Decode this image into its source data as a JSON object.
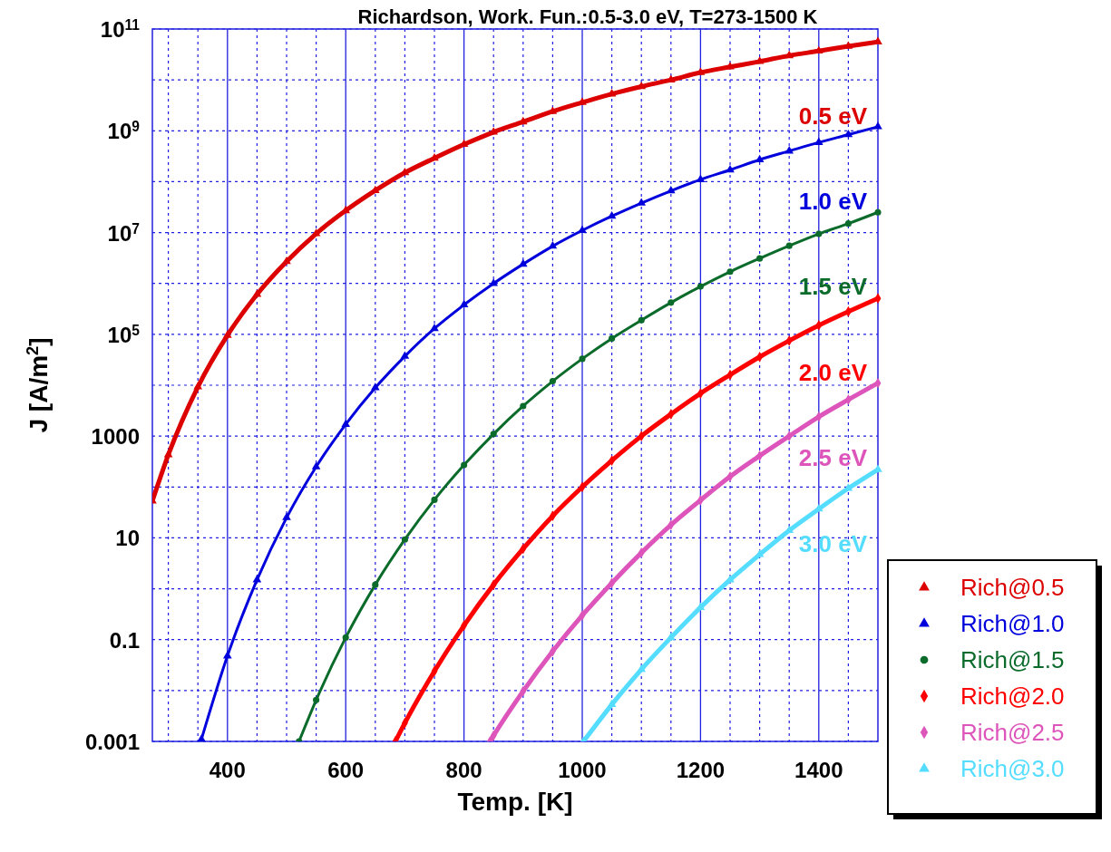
{
  "chart_data": {
    "type": "line",
    "title": "Richardson, Work. Fun.:0.5-3.0 eV, T=273-1500 K",
    "xlabel": "Temp. [K]",
    "ylabel": "J [A/m$^{2}$]",
    "log": "y",
    "grid": true,
    "legend": "bottom right",
    "xlim": [
      273,
      1500
    ],
    "xticks": [
      {
        "value": 300,
        "label": null
      },
      {
        "value": 350,
        "label": null
      },
      400,
      {
        "value": 450,
        "label": null
      },
      {
        "value": 500,
        "label": null
      },
      {
        "value": 550,
        "label": null
      },
      600,
      {
        "value": 650,
        "label": null
      },
      {
        "value": 700,
        "label": null
      },
      {
        "value": 750,
        "label": null
      },
      800,
      {
        "value": 850,
        "label": null
      },
      {
        "value": 900,
        "label": null
      },
      {
        "value": 950,
        "label": null
      },
      1000,
      {
        "value": 1050,
        "label": null
      },
      {
        "value": 1100,
        "label": null
      },
      {
        "value": 1150,
        "label": null
      },
      1200,
      {
        "value": 1250,
        "label": null
      },
      {
        "value": 1300,
        "label": null
      },
      {
        "value": 1350,
        "label": null
      },
      1400,
      {
        "value": 1450,
        "label": null
      }
    ],
    "ylim": [
      0.001,
      100000000000.0
    ],
    "yticks": [
      0.001,
      {
        "value": 0.01,
        "label": null
      },
      0.1,
      {
        "value": 1,
        "label": null
      },
      10,
      {
        "value": 100,
        "label": null
      },
      1000,
      {
        "value": 10000,
        "label": null
      },
      {
        "value": 100000,
        "label": "10$^{5}$"
      },
      {
        "value": 1000000,
        "label": null
      },
      {
        "value": 10000000,
        "label": "10$^{7}$"
      },
      {
        "value": 100000000,
        "label": null
      },
      {
        "value": 1000000000,
        "label": "10$^{9}$"
      },
      {
        "value": 10000000000,
        "label": null
      },
      {
        "value": 100000000000,
        "label": "10$^{11}$"
      }
    ],
    "series": [
      {
        "name": "Rich@0.5",
        "color": "#dd0000",
        "marker": "triangle",
        "x": [
          273,
          300,
          350,
          400,
          450,
          500,
          550,
          600,
          650,
          700,
          750,
          800,
          850,
          900,
          950,
          1000,
          1050,
          1100,
          1150,
          1200,
          1250,
          1300,
          1350,
          1400,
          1450,
          1500
        ],
        "values": [
          53,
          430,
          9300,
          96000,
          610000,
          2700000,
          9500000,
          27000000,
          67000000,
          150000000,
          290000000,
          540000000,
          940000000,
          1500000000,
          2400000000,
          3600000000,
          5300000000,
          7400000000,
          10000000000,
          14000000000,
          18000000000,
          23000000000,
          30000000000,
          37000000000,
          46000000000,
          56000000000
        ]
      },
      {
        "name": "Rich@1.0",
        "color": "#0000dd",
        "marker": "triangle",
        "x": [
          356,
          400,
          450,
          500,
          550,
          600,
          650,
          700,
          750,
          800,
          850,
          900,
          950,
          1000,
          1050,
          1100,
          1150,
          1200,
          1250,
          1300,
          1350,
          1400,
          1450,
          1500
        ],
        "values": [
          0.0011,
          0.048,
          1.5,
          25,
          250,
          1700,
          8900,
          37000,
          130000,
          380000,
          1000000,
          2400000,
          5400000,
          11000000,
          21000000,
          38000000,
          66000000,
          110000000,
          170000000,
          270000000,
          400000000,
          590000000,
          840000000,
          1200000000
        ]
      },
      {
        "name": "Rich@1.5",
        "color": "#0b6b2b",
        "marker": "circle",
        "x": [
          521,
          550,
          600,
          650,
          700,
          750,
          800,
          850,
          900,
          950,
          1000,
          1050,
          1100,
          1150,
          1200,
          1250,
          1300,
          1350,
          1400,
          1450,
          1500
        ],
        "values": [
          0.001,
          0.0065,
          0.11,
          1.2,
          9.3,
          56,
          270,
          1100,
          3900,
          12000,
          33000,
          83000,
          190000,
          420000,
          870000,
          1700000,
          3100000,
          5500000,
          9400000,
          15000000,
          25000000
        ]
      },
      {
        "name": "Rich@2.0",
        "color": "#ff0000",
        "marker": "diamond",
        "x": [
          684,
          700,
          750,
          800,
          850,
          900,
          950,
          1000,
          1050,
          1100,
          1150,
          1200,
          1250,
          1300,
          1350,
          1400,
          1450,
          1500
        ],
        "values": [
          0.001,
          0.0023,
          0.024,
          0.19,
          1.2,
          6.1,
          27,
          100,
          330,
          1000,
          2700,
          6900,
          16000,
          36000,
          75000,
          150000,
          280000,
          510000
        ]
      },
      {
        "name": "Rich@2.5",
        "color": "#dd55bb",
        "marker": "diamond",
        "x": [
          844,
          850,
          900,
          950,
          1000,
          1050,
          1100,
          1150,
          1200,
          1250,
          1300,
          1350,
          1400,
          1450,
          1500
        ],
        "values": [
          0.001,
          0.0013,
          0.0097,
          0.059,
          0.3,
          1.3,
          5.1,
          18,
          55,
          160,
          410,
          1000,
          2400,
          5200,
          11000
        ]
      },
      {
        "name": "Rich@3.0",
        "color": "#55ddff",
        "marker": "triangle",
        "x": [
          1002,
          1050,
          1100,
          1150,
          1200,
          1250,
          1300,
          1350,
          1400,
          1450,
          1500
        ],
        "values": [
          0.001,
          0.0053,
          0.026,
          0.11,
          0.43,
          1.5,
          4.7,
          14,
          37,
          94,
          220
        ]
      }
    ],
    "annotations": [
      "0.5 eV",
      "1.0 eV",
      "1.5 eV",
      "2.0 eV",
      "2.5 eV",
      "3.0 eV"
    ]
  }
}
